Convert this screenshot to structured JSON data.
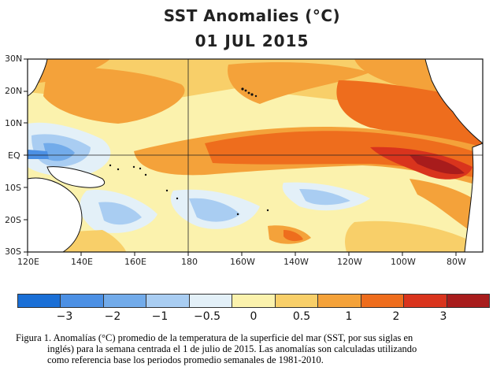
{
  "title": "SST Anomalies (°C)",
  "date": "01 JUL 2015",
  "map": {
    "lat_labels": [
      "30N",
      "20N",
      "10N",
      "EQ",
      "10S",
      "20S",
      "30S"
    ],
    "lon_labels": [
      "120E",
      "140E",
      "160E",
      "180",
      "160W",
      "140W",
      "120W",
      "100W",
      "80W"
    ]
  },
  "colorbar": {
    "colors": [
      "#1a6fd6",
      "#4c90e4",
      "#72abea",
      "#a9cdf2",
      "#e3f0f8",
      "#fbf2ad",
      "#f8cf69",
      "#f4a23a",
      "#ee6d1d",
      "#d9341d",
      "#a81c1c"
    ],
    "labels": [
      "−3",
      "−2",
      "−1",
      "−0.5",
      "0",
      "0.5",
      "1",
      "2",
      "3"
    ]
  },
  "caption": {
    "line1": "Figura 1. Anomalías (°C) promedio de la temperatura de la superficie del mar (SST, por sus siglas en",
    "line2": "inglés) para la semana centrada el 1 de julio de 2015.   Las anomalías son calculadas utilizando",
    "line3": "como referencia base los periodos promedio semanales de 1981-2010."
  }
}
